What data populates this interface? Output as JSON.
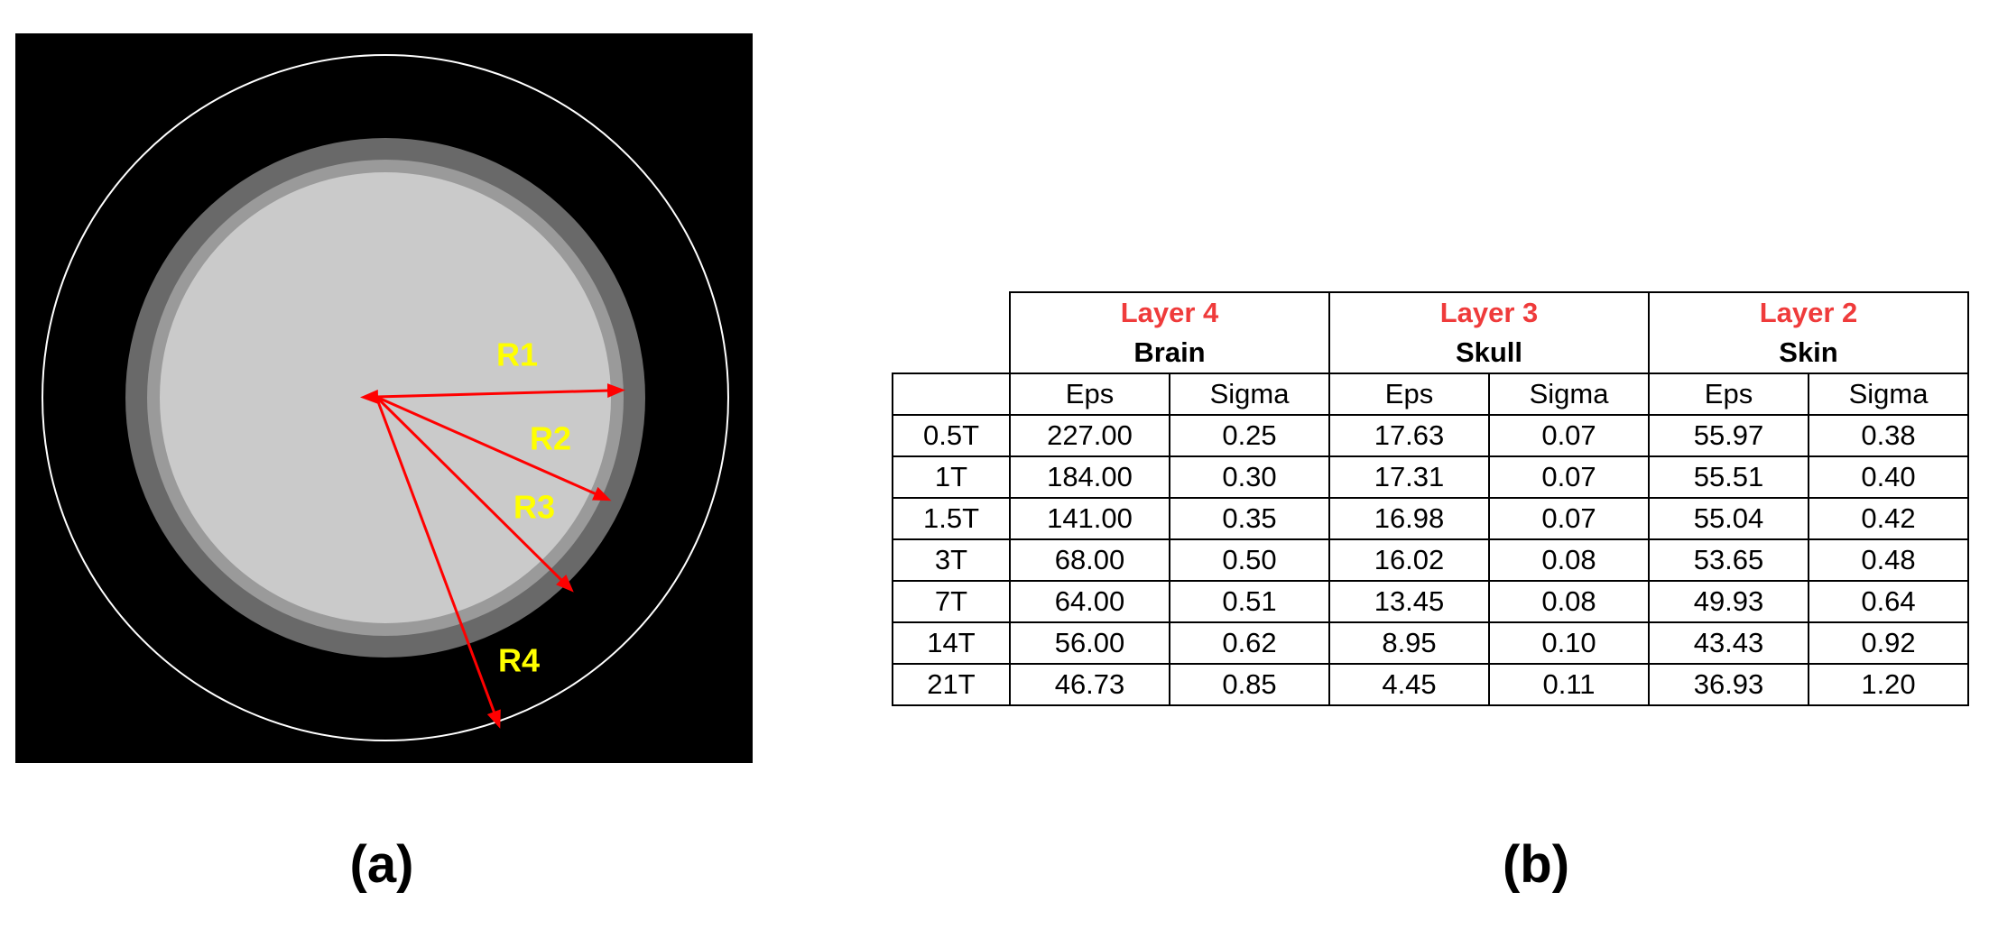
{
  "panel_a": {
    "radius_labels": [
      "R1",
      "R2",
      "R3",
      "R4"
    ],
    "caption": "(a)"
  },
  "panel_b": {
    "caption": "(b)",
    "groups": [
      {
        "layer": "Layer 4",
        "tissue": "Brain"
      },
      {
        "layer": "Layer 3",
        "tissue": "Skull"
      },
      {
        "layer": "Layer 2",
        "tissue": "Skin"
      }
    ],
    "subheaders": [
      "Eps",
      "Sigma",
      "Eps",
      "Sigma",
      "Eps",
      "Sigma"
    ],
    "rows": [
      [
        "0.5T",
        "227.00",
        "0.25",
        "17.63",
        "0.07",
        "55.97",
        "0.38"
      ],
      [
        "1T",
        "184.00",
        "0.30",
        "17.31",
        "0.07",
        "55.51",
        "0.40"
      ],
      [
        "1.5T",
        "141.00",
        "0.35",
        "16.98",
        "0.07",
        "55.04",
        "0.42"
      ],
      [
        "3T",
        "68.00",
        "0.50",
        "16.02",
        "0.08",
        "53.65",
        "0.48"
      ],
      [
        "7T",
        "64.00",
        "0.51",
        "13.45",
        "0.08",
        "49.93",
        "0.64"
      ],
      [
        "14T",
        "56.00",
        "0.62",
        "8.95",
        "0.10",
        "43.43",
        "0.92"
      ],
      [
        "21T",
        "46.73",
        "0.85",
        "4.45",
        "0.11",
        "36.93",
        "1.20"
      ]
    ]
  }
}
